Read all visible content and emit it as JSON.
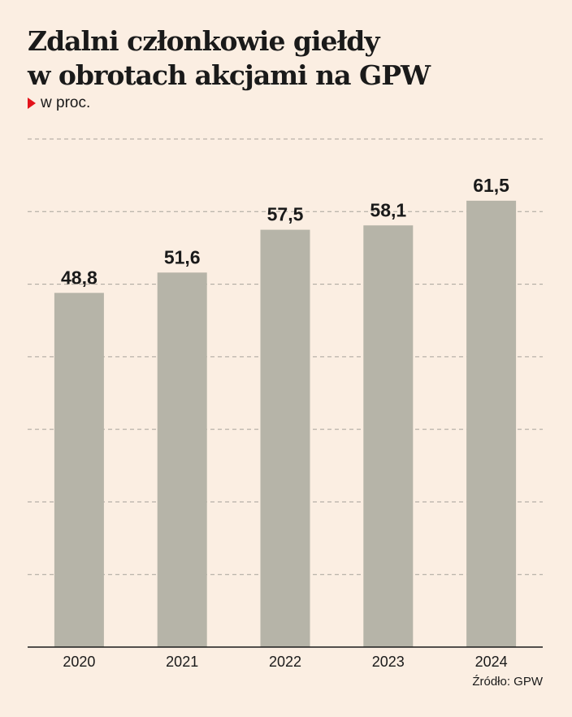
{
  "header": {
    "title_line1": "Zdalni członkowie giełdy",
    "title_line2": "w obrotach akcjami na GPW",
    "unit": "w proc."
  },
  "footer": {
    "source": "Źródło: GPW"
  },
  "colors": {
    "background": "#fbeee2",
    "bar": "#b6b4a8",
    "marker": "#e3131b"
  },
  "chart_data": {
    "type": "bar",
    "title": "Zdalni członkowie giełdy w obrotach akcjami na GPW",
    "ylabel": "w proc.",
    "categories": [
      "2020",
      "2021",
      "2022",
      "2023",
      "2024"
    ],
    "values": [
      48.8,
      51.6,
      57.5,
      58.1,
      61.5
    ],
    "value_labels": [
      "48,8",
      "51,6",
      "57,5",
      "58,1",
      "61,5"
    ],
    "ylim": [
      0,
      70
    ],
    "grid": true,
    "legend": "none"
  }
}
